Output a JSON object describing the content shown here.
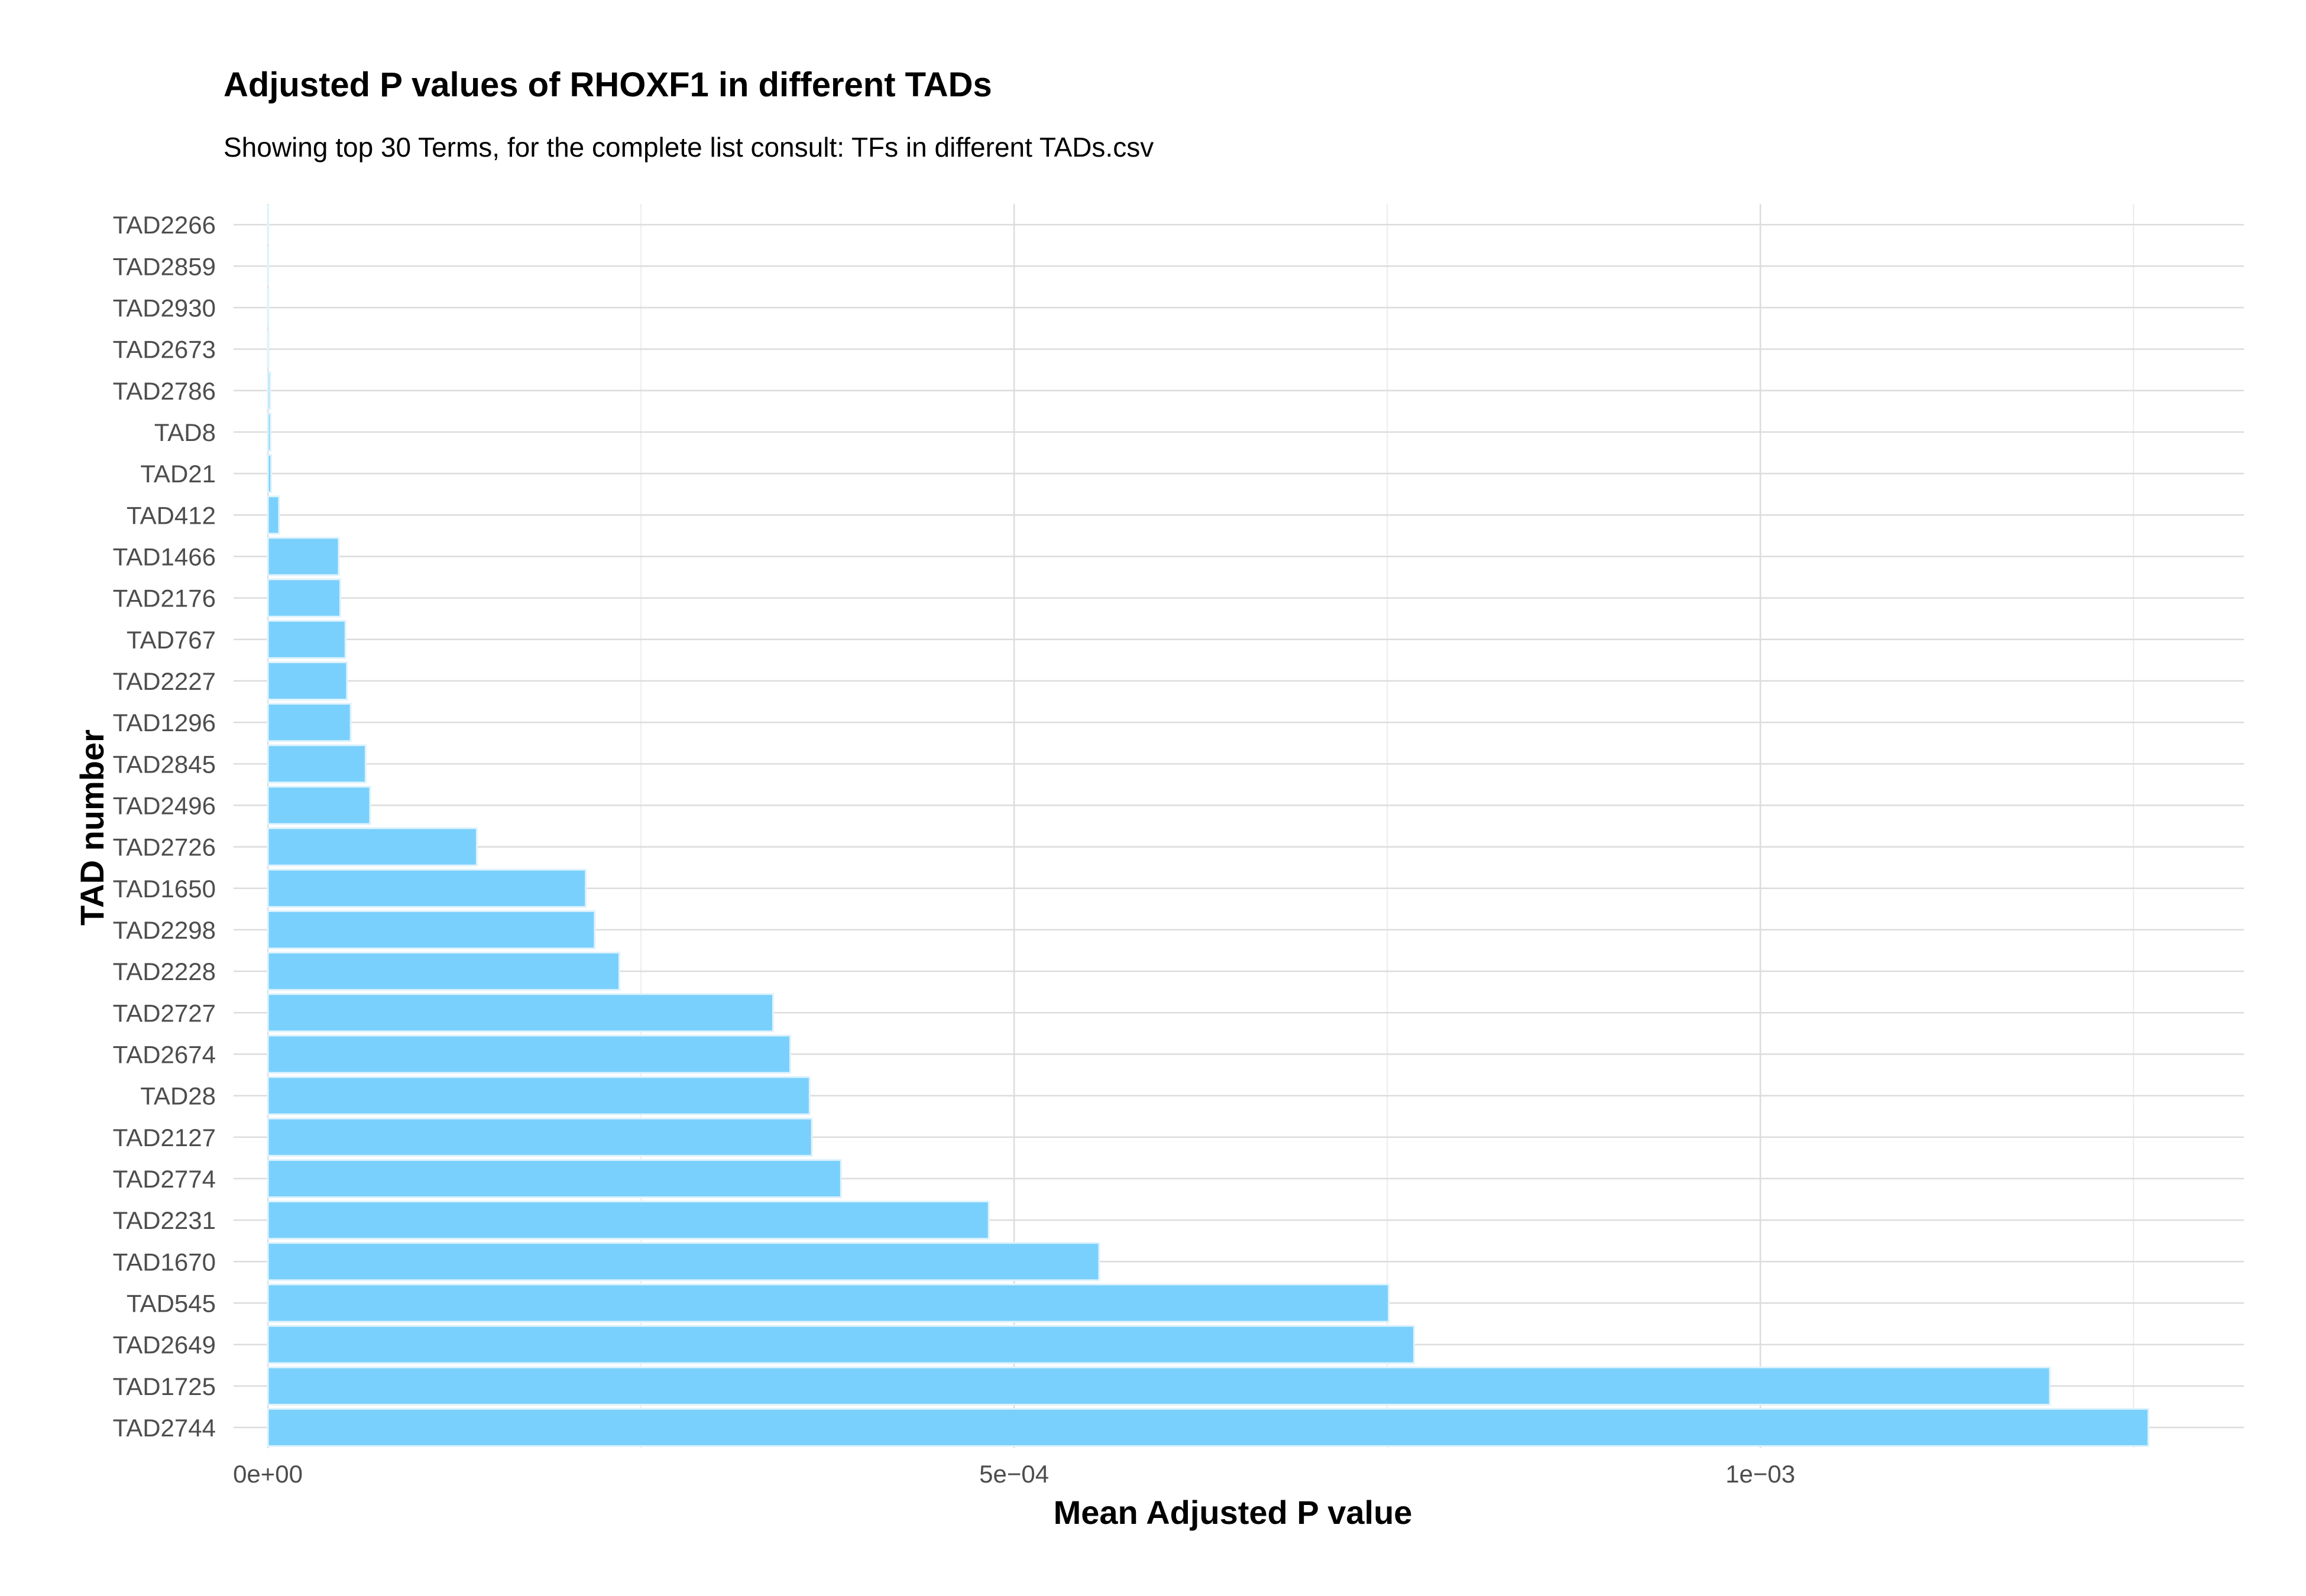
{
  "chart_data": {
    "type": "bar",
    "orientation": "horizontal",
    "title": "Adjusted P values of RHOXF1 in different TADs",
    "subtitle": "Showing top 30 Terms, for the complete list consult: TFs in different TADs.csv",
    "xlabel": "Mean Adjusted P value",
    "ylabel": "TAD number",
    "xlim": [
      -2.3e-05,
      0.001324
    ],
    "x_ticks": [
      {
        "value": 0,
        "label": "0e+00"
      },
      {
        "value": 0.0005,
        "label": "5e−04"
      },
      {
        "value": 0.001,
        "label": "1e−03"
      }
    ],
    "grid": true,
    "bar_color": "#7ad0fc",
    "bar_edge_color": "#dff3fd",
    "grid_color": "#dcdcdc",
    "categories": [
      "TAD2266",
      "TAD2859",
      "TAD2930",
      "TAD2673",
      "TAD2786",
      "TAD8",
      "TAD21",
      "TAD412",
      "TAD1466",
      "TAD2176",
      "TAD767",
      "TAD2227",
      "TAD1296",
      "TAD2845",
      "TAD2496",
      "TAD2726",
      "TAD1650",
      "TAD2298",
      "TAD2228",
      "TAD2727",
      "TAD2674",
      "TAD28",
      "TAD2127",
      "TAD2774",
      "TAD2231",
      "TAD1670",
      "TAD545",
      "TAD2649",
      "TAD1725",
      "TAD2744"
    ],
    "values": [
      1e-07,
      2e-07,
      3e-07,
      4e-07,
      1.5e-06,
      1.8e-06,
      2.2e-06,
      7.5e-06,
      4.75e-05,
      4.85e-05,
      5.2e-05,
      5.3e-05,
      5.55e-05,
      6.55e-05,
      6.85e-05,
      0.00014,
      0.000213,
      0.000219,
      0.0002355,
      0.0003385,
      0.00035,
      0.000363,
      0.0003645,
      0.000384,
      0.000483,
      0.000557,
      0.000751,
      0.000768,
      0.001194,
      0.00126
    ]
  }
}
